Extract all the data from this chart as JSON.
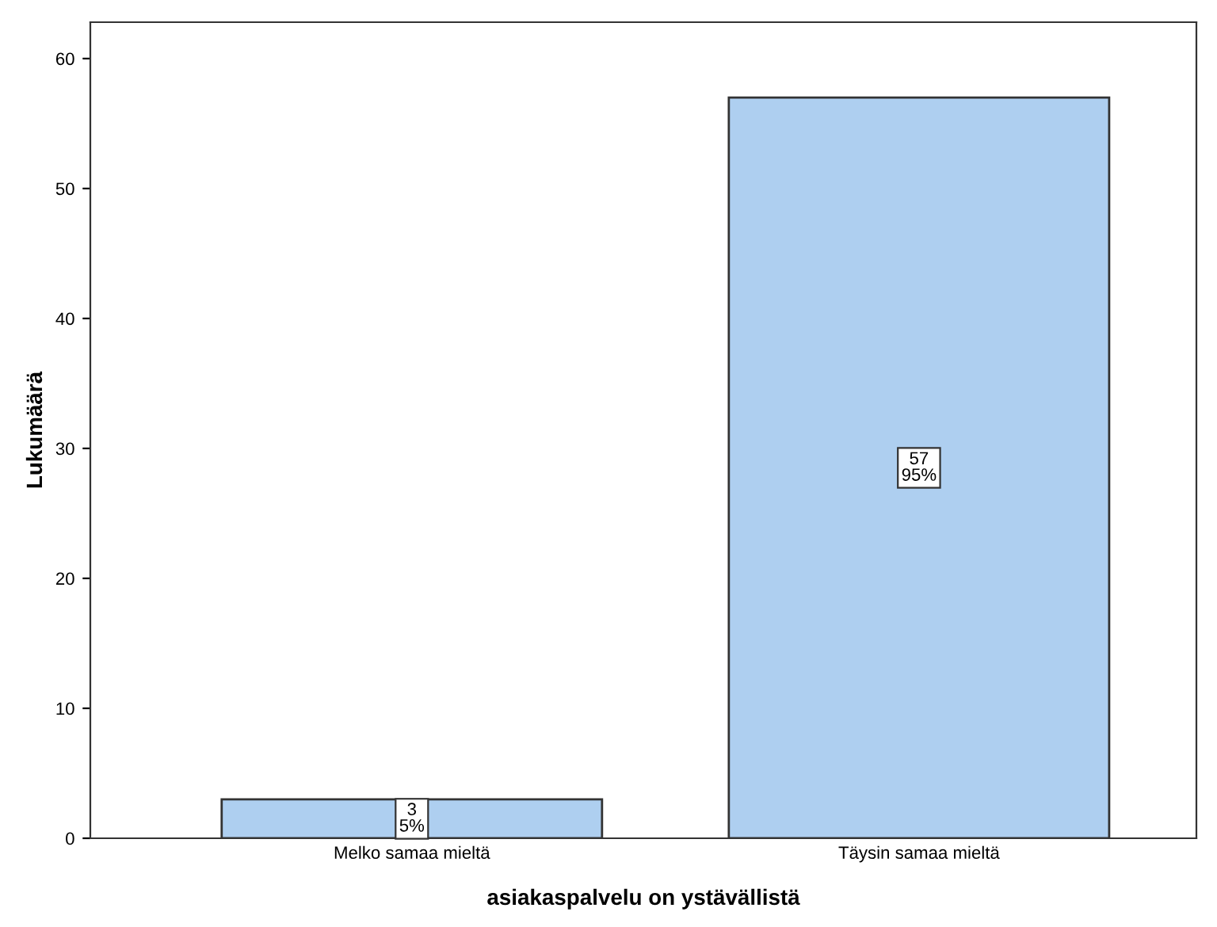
{
  "chart_data": {
    "type": "bar",
    "xlabel": "asiakaspalvelu on ystävällistä",
    "ylabel": "Lukumäärä",
    "categories": [
      "Melko samaa mieltä",
      "Täysin samaa mieltä"
    ],
    "values": [
      3,
      57
    ],
    "color": "#aecff0",
    "value_labels": [
      "3\n5%",
      "57\n95%"
    ],
    "ylim": [
      0,
      62.8
    ],
    "yticks": [
      0,
      10,
      20,
      30,
      40,
      50,
      60
    ],
    "grid": false
  }
}
